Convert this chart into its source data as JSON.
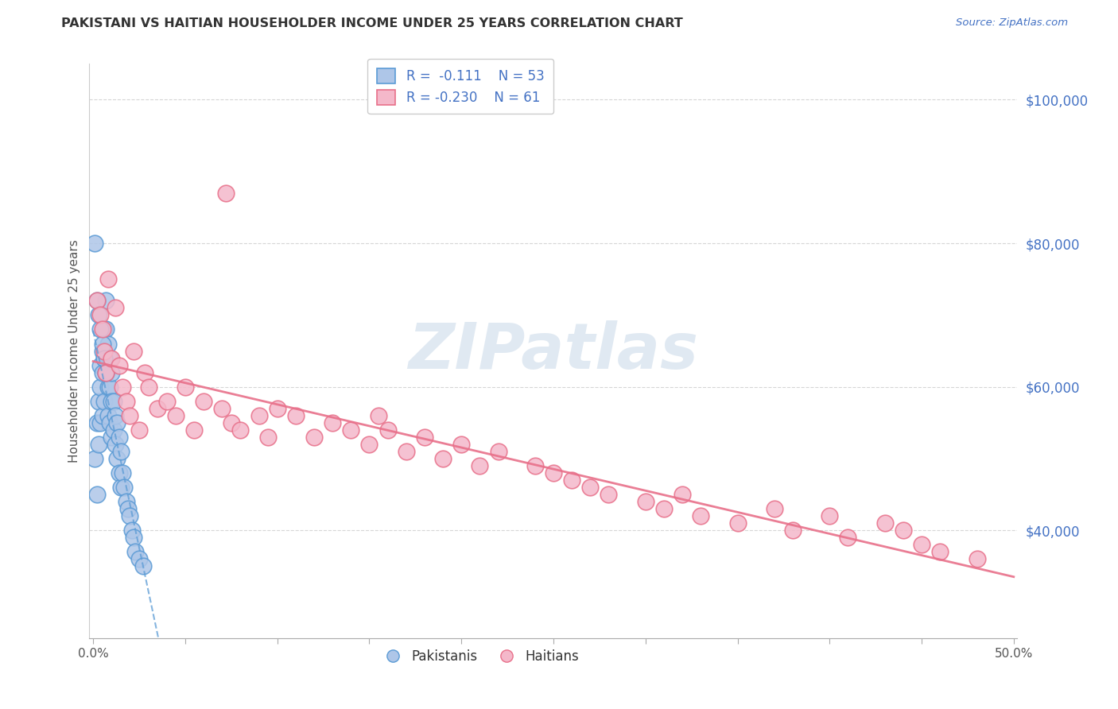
{
  "title": "PAKISTANI VS HAITIAN HOUSEHOLDER INCOME UNDER 25 YEARS CORRELATION CHART",
  "source": "Source: ZipAtlas.com",
  "ylabel": "Householder Income Under 25 years",
  "xtick_positions": [
    0.0,
    0.05,
    0.1,
    0.15,
    0.2,
    0.25,
    0.3,
    0.35,
    0.4,
    0.45,
    0.5
  ],
  "xtick_labels_show": {
    "0.0": "0.0%",
    "0.5": "50.0%"
  },
  "ytick_labels": [
    "$40,000",
    "$60,000",
    "$80,000",
    "$100,000"
  ],
  "ytick_vals": [
    40000,
    60000,
    80000,
    100000
  ],
  "xmin": -0.002,
  "xmax": 0.502,
  "ymin": 25000,
  "ymax": 105000,
  "pakistani_color": "#aec6e8",
  "pakistani_edge": "#5b9bd5",
  "haitian_color": "#f4b8ca",
  "haitian_edge": "#e8708a",
  "trendline_pakistani_color": "#5b9bd5",
  "trendline_haitian_color": "#e8708a",
  "watermark": "ZIPatlas",
  "watermark_color": "#c8d8e8",
  "pak_x": [
    0.001,
    0.002,
    0.002,
    0.003,
    0.003,
    0.004,
    0.004,
    0.004,
    0.005,
    0.005,
    0.005,
    0.006,
    0.006,
    0.006,
    0.007,
    0.007,
    0.007,
    0.008,
    0.008,
    0.008,
    0.009,
    0.009,
    0.009,
    0.01,
    0.01,
    0.01,
    0.011,
    0.011,
    0.012,
    0.012,
    0.013,
    0.013,
    0.014,
    0.014,
    0.015,
    0.015,
    0.016,
    0.017,
    0.018,
    0.019,
    0.02,
    0.021,
    0.022,
    0.023,
    0.025,
    0.027,
    0.001,
    0.002,
    0.003,
    0.004,
    0.005,
    0.006,
    0.007
  ],
  "pak_y": [
    50000,
    55000,
    45000,
    58000,
    52000,
    60000,
    63000,
    55000,
    62000,
    65000,
    56000,
    68000,
    64000,
    58000,
    72000,
    68000,
    62000,
    66000,
    60000,
    56000,
    64000,
    60000,
    55000,
    62000,
    58000,
    53000,
    58000,
    54000,
    56000,
    52000,
    55000,
    50000,
    53000,
    48000,
    51000,
    46000,
    48000,
    46000,
    44000,
    43000,
    42000,
    40000,
    39000,
    37000,
    36000,
    35000,
    80000,
    72000,
    70000,
    68000,
    66000,
    64000,
    62000
  ],
  "hai_x": [
    0.002,
    0.004,
    0.005,
    0.006,
    0.007,
    0.008,
    0.01,
    0.012,
    0.014,
    0.016,
    0.018,
    0.02,
    0.022,
    0.025,
    0.028,
    0.03,
    0.035,
    0.04,
    0.045,
    0.05,
    0.055,
    0.06,
    0.07,
    0.075,
    0.08,
    0.09,
    0.095,
    0.1,
    0.11,
    0.12,
    0.13,
    0.14,
    0.15,
    0.155,
    0.16,
    0.17,
    0.18,
    0.19,
    0.2,
    0.21,
    0.22,
    0.24,
    0.25,
    0.26,
    0.27,
    0.28,
    0.3,
    0.31,
    0.32,
    0.33,
    0.35,
    0.37,
    0.38,
    0.4,
    0.41,
    0.43,
    0.44,
    0.45,
    0.46,
    0.48,
    0.072
  ],
  "hai_y": [
    72000,
    70000,
    68000,
    65000,
    62000,
    75000,
    64000,
    71000,
    63000,
    60000,
    58000,
    56000,
    65000,
    54000,
    62000,
    60000,
    57000,
    58000,
    56000,
    60000,
    54000,
    58000,
    57000,
    55000,
    54000,
    56000,
    53000,
    57000,
    56000,
    53000,
    55000,
    54000,
    52000,
    56000,
    54000,
    51000,
    53000,
    50000,
    52000,
    49000,
    51000,
    49000,
    48000,
    47000,
    46000,
    45000,
    44000,
    43000,
    45000,
    42000,
    41000,
    43000,
    40000,
    42000,
    39000,
    41000,
    40000,
    38000,
    37000,
    36000,
    87000
  ]
}
